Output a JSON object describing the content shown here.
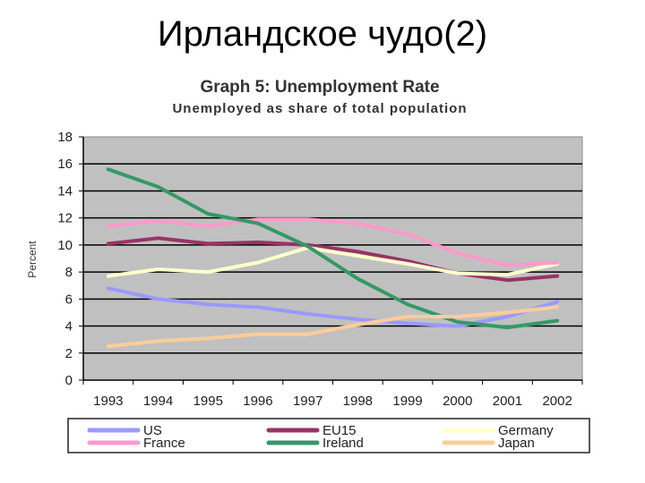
{
  "slide": {
    "title": "Ирландское чудо(2)"
  },
  "chart_data": {
    "type": "line",
    "title": "Graph 5: Unemployment Rate",
    "subtitle": "Unemployed as share of total population",
    "xlabel": "",
    "ylabel": "Percent",
    "categories": [
      "1993",
      "1994",
      "1995",
      "1996",
      "1997",
      "1998",
      "1999",
      "2000",
      "2001",
      "2002"
    ],
    "ylim": [
      0,
      18
    ],
    "yticks": [
      "0",
      "2",
      "4",
      "6",
      "8",
      "10",
      "12",
      "14",
      "16",
      "18"
    ],
    "grid": true,
    "background": "#c0c0c0",
    "legend_position": "bottom",
    "series": [
      {
        "name": "US",
        "color": "#9999ff",
        "values": [
          6.8,
          6.0,
          5.6,
          5.4,
          4.9,
          4.5,
          4.2,
          4.0,
          4.7,
          5.8
        ]
      },
      {
        "name": "EU15",
        "color": "#993366",
        "values": [
          10.1,
          10.5,
          10.1,
          10.2,
          10.0,
          9.5,
          8.8,
          7.9,
          7.4,
          7.7
        ]
      },
      {
        "name": "Germany",
        "color": "#ffffcc",
        "values": [
          7.7,
          8.2,
          8.0,
          8.7,
          9.8,
          9.2,
          8.6,
          7.9,
          7.8,
          8.6
        ]
      },
      {
        "name": "France",
        "color": "#ff99cc",
        "values": [
          11.4,
          11.8,
          11.4,
          11.9,
          11.9,
          11.6,
          10.8,
          9.4,
          8.5,
          8.7
        ]
      },
      {
        "name": "Ireland",
        "color": "#339966",
        "values": [
          15.6,
          14.3,
          12.3,
          11.6,
          9.9,
          7.5,
          5.6,
          4.3,
          3.9,
          4.4
        ]
      },
      {
        "name": "Japan",
        "color": "#ffcc99",
        "values": [
          2.5,
          2.9,
          3.1,
          3.4,
          3.4,
          4.1,
          4.7,
          4.7,
          5.0,
          5.4
        ]
      }
    ]
  }
}
